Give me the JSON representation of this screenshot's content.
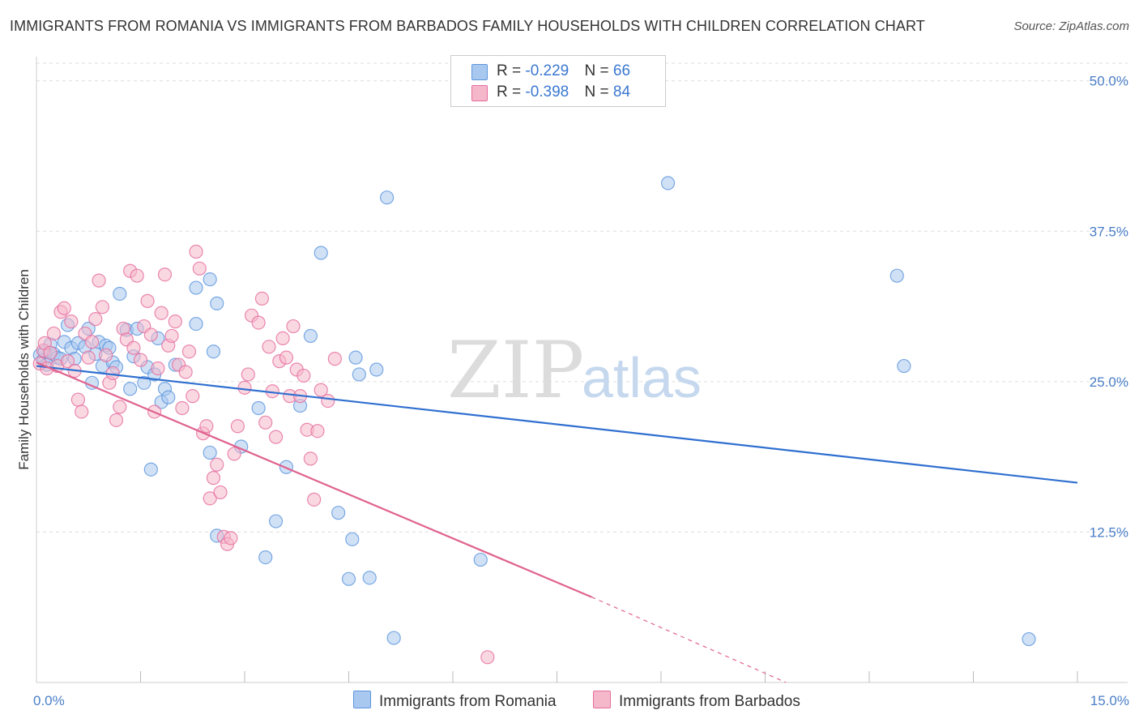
{
  "header": {
    "title": "IMMIGRANTS FROM ROMANIA VS IMMIGRANTS FROM BARBADOS FAMILY HOUSEHOLDS WITH CHILDREN CORRELATION CHART",
    "source": "Source: ZipAtlas.com"
  },
  "watermark": {
    "zip": "ZIP",
    "atlas": "atlas"
  },
  "legend": {
    "romania": {
      "r_label": "R = ",
      "r_value": "-0.229",
      "n_label": "N = ",
      "n_value": "66",
      "color": "#a9c8ef"
    },
    "barbados": {
      "r_label": "R = ",
      "r_value": "-0.398",
      "n_label": "N = ",
      "n_value": "84",
      "color": "#f5b8cb"
    }
  },
  "bottom_legend": {
    "romania": "Immigrants from Romania",
    "barbados": "Immigrants from Barbados"
  },
  "chart_data": {
    "type": "scatter",
    "title": "IMMIGRANTS FROM ROMANIA VS IMMIGRANTS FROM BARBADOS FAMILY HOUSEHOLDS WITH CHILDREN CORRELATION CHART",
    "xlabel": "",
    "ylabel": "Family Households with Children",
    "xlim": [
      0,
      15
    ],
    "ylim": [
      0,
      52
    ],
    "x_tick_labels": [
      "0.0%",
      "15.0%"
    ],
    "y_ticks": [
      12.5,
      25.0,
      37.5,
      50.0
    ],
    "y_tick_labels": [
      "12.5%",
      "25.0%",
      "37.5%",
      "50.0%"
    ],
    "grid": true,
    "legend_position": "top-center",
    "series": [
      {
        "name": "Immigrants from Romania",
        "color": "#5b95dd",
        "fill": "#a9c8ef",
        "trend": {
          "x": [
            0,
            15
          ],
          "y": [
            26.3,
            16.6
          ]
        },
        "points": [
          [
            0.05,
            27.2
          ],
          [
            0.1,
            26.8
          ],
          [
            0.12,
            27.5
          ],
          [
            0.15,
            26.4
          ],
          [
            0.2,
            28.1
          ],
          [
            0.25,
            27.3
          ],
          [
            0.3,
            27.0
          ],
          [
            0.35,
            26.9
          ],
          [
            0.4,
            28.3
          ],
          [
            0.45,
            29.7
          ],
          [
            0.5,
            27.8
          ],
          [
            0.55,
            26.9
          ],
          [
            0.6,
            28.2
          ],
          [
            0.7,
            27.9
          ],
          [
            0.75,
            29.4
          ],
          [
            0.8,
            24.9
          ],
          [
            0.85,
            27.3
          ],
          [
            0.9,
            28.3
          ],
          [
            0.95,
            26.3
          ],
          [
            1.0,
            28.0
          ],
          [
            1.05,
            27.8
          ],
          [
            1.1,
            26.6
          ],
          [
            1.15,
            26.2
          ],
          [
            1.2,
            32.3
          ],
          [
            1.3,
            29.3
          ],
          [
            1.35,
            24.4
          ],
          [
            1.4,
            27.1
          ],
          [
            1.45,
            29.4
          ],
          [
            1.55,
            24.9
          ],
          [
            1.6,
            26.2
          ],
          [
            1.65,
            17.7
          ],
          [
            1.7,
            25.6
          ],
          [
            1.75,
            28.6
          ],
          [
            1.8,
            23.3
          ],
          [
            1.85,
            24.4
          ],
          [
            1.9,
            23.7
          ],
          [
            2.0,
            26.4
          ],
          [
            2.3,
            32.8
          ],
          [
            2.5,
            33.5
          ],
          [
            2.6,
            31.5
          ],
          [
            2.3,
            29.8
          ],
          [
            2.55,
            27.5
          ],
          [
            2.5,
            19.1
          ],
          [
            2.6,
            12.2
          ],
          [
            2.95,
            19.6
          ],
          [
            3.2,
            22.8
          ],
          [
            3.3,
            10.4
          ],
          [
            3.45,
            13.4
          ],
          [
            3.6,
            17.9
          ],
          [
            3.8,
            23.0
          ],
          [
            3.95,
            28.8
          ],
          [
            4.1,
            35.7
          ],
          [
            4.35,
            14.1
          ],
          [
            4.5,
            8.6
          ],
          [
            4.55,
            11.9
          ],
          [
            4.6,
            27.0
          ],
          [
            4.65,
            25.6
          ],
          [
            4.8,
            8.7
          ],
          [
            4.9,
            26.0
          ],
          [
            5.05,
            40.3
          ],
          [
            5.15,
            3.7
          ],
          [
            6.4,
            10.2
          ],
          [
            9.1,
            41.5
          ],
          [
            12.4,
            33.8
          ],
          [
            12.5,
            26.3
          ],
          [
            14.3,
            3.6
          ]
        ]
      },
      {
        "name": "Immigrants from Barbados",
        "color": "#e56c9c",
        "fill": "#f5b8cb",
        "trend": {
          "x": [
            0,
            8.0
          ],
          "y": [
            26.6,
            7.1
          ]
        },
        "trend_dashed": {
          "x": [
            8.0,
            10.8
          ],
          "y": [
            7.1,
            0
          ]
        },
        "points": [
          [
            0.05,
            26.5
          ],
          [
            0.1,
            27.6
          ],
          [
            0.12,
            28.2
          ],
          [
            0.15,
            26.1
          ],
          [
            0.2,
            27.4
          ],
          [
            0.25,
            29.0
          ],
          [
            0.3,
            26.3
          ],
          [
            0.35,
            30.8
          ],
          [
            0.4,
            31.1
          ],
          [
            0.45,
            26.7
          ],
          [
            0.5,
            30.0
          ],
          [
            0.55,
            25.9
          ],
          [
            0.6,
            23.5
          ],
          [
            0.65,
            22.5
          ],
          [
            0.7,
            29.0
          ],
          [
            0.75,
            27.0
          ],
          [
            0.8,
            28.3
          ],
          [
            0.85,
            30.2
          ],
          [
            0.9,
            33.4
          ],
          [
            0.95,
            31.2
          ],
          [
            1.0,
            27.2
          ],
          [
            1.05,
            24.9
          ],
          [
            1.1,
            25.7
          ],
          [
            1.15,
            21.8
          ],
          [
            1.2,
            22.9
          ],
          [
            1.25,
            29.4
          ],
          [
            1.3,
            28.5
          ],
          [
            1.35,
            34.2
          ],
          [
            1.4,
            27.8
          ],
          [
            1.45,
            33.8
          ],
          [
            1.5,
            26.8
          ],
          [
            1.55,
            29.6
          ],
          [
            1.6,
            31.7
          ],
          [
            1.65,
            28.9
          ],
          [
            1.7,
            22.5
          ],
          [
            1.75,
            26.1
          ],
          [
            1.8,
            30.7
          ],
          [
            1.85,
            33.9
          ],
          [
            1.9,
            28.0
          ],
          [
            1.95,
            28.8
          ],
          [
            2.0,
            30.0
          ],
          [
            2.05,
            26.4
          ],
          [
            2.1,
            22.8
          ],
          [
            2.15,
            25.8
          ],
          [
            2.2,
            27.5
          ],
          [
            2.25,
            23.8
          ],
          [
            2.3,
            35.8
          ],
          [
            2.35,
            34.4
          ],
          [
            2.4,
            20.7
          ],
          [
            2.45,
            21.3
          ],
          [
            2.5,
            15.3
          ],
          [
            2.55,
            17.0
          ],
          [
            2.6,
            18.1
          ],
          [
            2.65,
            15.8
          ],
          [
            2.7,
            12.1
          ],
          [
            2.75,
            11.5
          ],
          [
            2.8,
            12.0
          ],
          [
            2.85,
            19.0
          ],
          [
            2.9,
            21.3
          ],
          [
            3.0,
            24.5
          ],
          [
            3.05,
            25.6
          ],
          [
            3.1,
            30.5
          ],
          [
            3.2,
            29.9
          ],
          [
            3.25,
            31.9
          ],
          [
            3.3,
            21.6
          ],
          [
            3.35,
            27.9
          ],
          [
            3.4,
            24.2
          ],
          [
            3.45,
            20.4
          ],
          [
            3.5,
            26.7
          ],
          [
            3.55,
            28.6
          ],
          [
            3.6,
            27.0
          ],
          [
            3.65,
            23.8
          ],
          [
            3.7,
            29.6
          ],
          [
            3.75,
            26.0
          ],
          [
            3.8,
            23.8
          ],
          [
            3.85,
            25.5
          ],
          [
            3.9,
            21.0
          ],
          [
            3.95,
            18.6
          ],
          [
            4.0,
            15.2
          ],
          [
            4.05,
            20.9
          ],
          [
            4.1,
            24.3
          ],
          [
            4.2,
            23.4
          ],
          [
            4.3,
            26.9
          ],
          [
            6.5,
            2.1
          ]
        ]
      }
    ]
  }
}
